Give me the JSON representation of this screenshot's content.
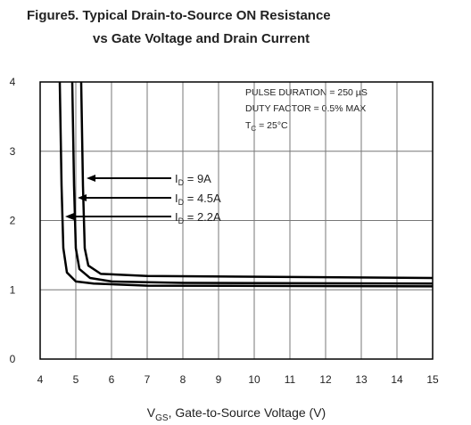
{
  "chart_data": {
    "type": "line",
    "title": [
      "Figure5.  Typical Drain-to-Source ON Resistance",
      "vs Gate Voltage and Drain Current"
    ],
    "x_label": {
      "symbol": "V",
      "subscript": "GS",
      "text": ", Gate-to-Source Voltage (V)"
    },
    "annotations": [
      "PULSE DURATION = 250 µS",
      "DUTY FACTOR = 0.5% MAX"
    ],
    "temperature": {
      "symbol": "T",
      "subscript": "C",
      "text": " = 25°C"
    },
    "xlim": [
      4,
      15
    ],
    "xticks": [
      4,
      5,
      6,
      7,
      8,
      9,
      10,
      11,
      12,
      13,
      14,
      15
    ],
    "ylim": [
      0,
      4
    ],
    "yticks": [
      0,
      1,
      2,
      3,
      4
    ],
    "grid": true,
    "series": [
      {
        "label": {
          "symbol": "I",
          "subscript": "D",
          "text": " = 9A"
        },
        "color": "#000000",
        "x": [
          5.15,
          5.2,
          5.25,
          5.35,
          5.7,
          7,
          15
        ],
        "values": [
          4,
          2.5,
          1.6,
          1.35,
          1.23,
          1.2,
          1.17
        ]
      },
      {
        "label": {
          "symbol": "I",
          "subscript": "D",
          "text": " = 4.5A"
        },
        "color": "#000000",
        "x": [
          4.9,
          4.95,
          5.0,
          5.1,
          5.4,
          6,
          8,
          15
        ],
        "values": [
          4,
          2.5,
          1.6,
          1.3,
          1.17,
          1.12,
          1.1,
          1.09
        ]
      },
      {
        "label": {
          "symbol": "I",
          "subscript": "D",
          "text": " = 2.2A"
        },
        "color": "#000000",
        "x": [
          4.55,
          4.6,
          4.65,
          4.75,
          5,
          5.5,
          7,
          15
        ],
        "values": [
          4,
          2.5,
          1.6,
          1.25,
          1.12,
          1.09,
          1.06,
          1.05
        ]
      }
    ]
  }
}
